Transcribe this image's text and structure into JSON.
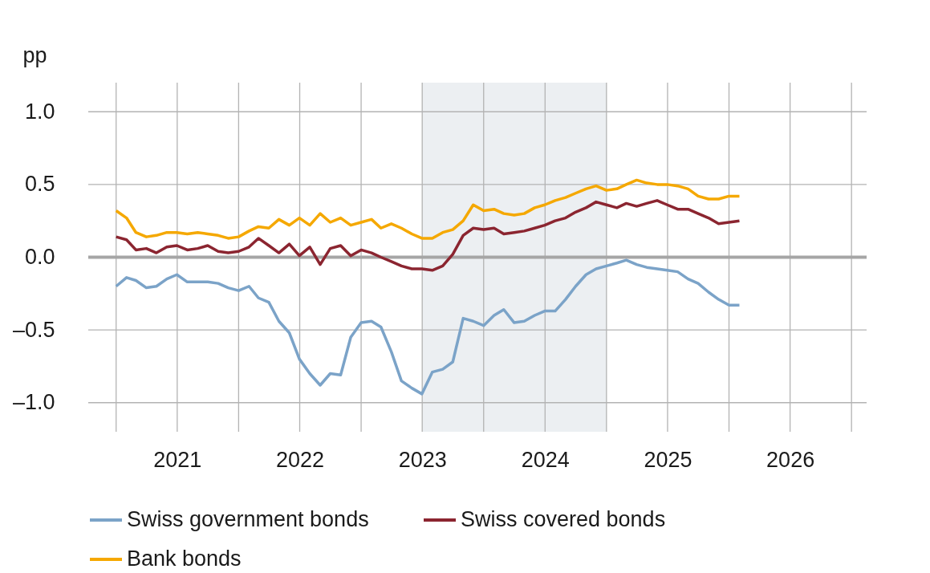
{
  "chart_data": {
    "type": "line",
    "ylabel": "pp",
    "legend": "bottom",
    "grid": true,
    "line_style": "solid",
    "marker": "none",
    "x": [
      "2021-01",
      "2021-02",
      "2021-03",
      "2021-04",
      "2021-05",
      "2021-06",
      "2021-07",
      "2021-08",
      "2021-09",
      "2021-10",
      "2021-11",
      "2021-12",
      "2022-01",
      "2022-02",
      "2022-03",
      "2022-04",
      "2022-05",
      "2022-06",
      "2022-07",
      "2022-08",
      "2022-09",
      "2022-10",
      "2022-11",
      "2022-12",
      "2023-01",
      "2023-02",
      "2023-03",
      "2023-04",
      "2023-05",
      "2023-06",
      "2023-07",
      "2023-08",
      "2023-09",
      "2023-10",
      "2023-11",
      "2023-12",
      "2024-01",
      "2024-02",
      "2024-03",
      "2024-04",
      "2024-05",
      "2024-06",
      "2024-07",
      "2024-08",
      "2024-09",
      "2024-10",
      "2024-11",
      "2024-12",
      "2025-01",
      "2025-02",
      "2025-03",
      "2025-04",
      "2025-05",
      "2025-06",
      "2025-07",
      "2025-08",
      "2025-09",
      "2025-10",
      "2025-11",
      "2025-12",
      "2026-01",
      "2026-02"
    ],
    "series": [
      {
        "name": "Swiss government bonds",
        "color": "#7ba3c8",
        "values": [
          -0.2,
          -0.14,
          -0.16,
          -0.21,
          -0.2,
          -0.15,
          -0.12,
          -0.17,
          -0.17,
          -0.17,
          -0.18,
          -0.21,
          -0.23,
          -0.2,
          -0.28,
          -0.31,
          -0.44,
          -0.52,
          -0.7,
          -0.8,
          -0.88,
          -0.8,
          -0.81,
          -0.55,
          -0.45,
          -0.44,
          -0.48,
          -0.65,
          -0.85,
          -0.9,
          -0.94,
          -0.79,
          -0.77,
          -0.72,
          -0.42,
          -0.44,
          -0.47,
          -0.4,
          -0.36,
          -0.45,
          -0.44,
          -0.4,
          -0.37,
          -0.37,
          -0.29,
          -0.2,
          -0.12,
          -0.08,
          -0.06,
          -0.04,
          -0.02,
          -0.05,
          -0.07,
          -0.08,
          -0.09,
          -0.1,
          -0.15,
          -0.18,
          -0.24,
          -0.29,
          -0.33,
          -0.33
        ]
      },
      {
        "name": "Swiss covered bonds",
        "color": "#8b2530",
        "values": [
          0.14,
          0.12,
          0.05,
          0.06,
          0.03,
          0.07,
          0.08,
          0.05,
          0.06,
          0.08,
          0.04,
          0.03,
          0.04,
          0.07,
          0.13,
          0.08,
          0.03,
          0.09,
          0.01,
          0.07,
          -0.05,
          0.06,
          0.08,
          0.01,
          0.05,
          0.03,
          0.0,
          -0.03,
          -0.06,
          -0.08,
          -0.08,
          -0.09,
          -0.06,
          0.02,
          0.15,
          0.2,
          0.19,
          0.2,
          0.16,
          0.17,
          0.18,
          0.2,
          0.22,
          0.25,
          0.27,
          0.31,
          0.34,
          0.38,
          0.36,
          0.34,
          0.37,
          0.35,
          0.37,
          0.39,
          0.36,
          0.33,
          0.33,
          0.3,
          0.27,
          0.23,
          0.24,
          0.25
        ]
      },
      {
        "name": "Bank bonds",
        "color": "#f5a800",
        "values": [
          0.32,
          0.27,
          0.17,
          0.14,
          0.15,
          0.17,
          0.17,
          0.16,
          0.17,
          0.16,
          0.15,
          0.13,
          0.14,
          0.18,
          0.21,
          0.2,
          0.26,
          0.22,
          0.27,
          0.22,
          0.3,
          0.24,
          0.27,
          0.22,
          0.24,
          0.26,
          0.2,
          0.23,
          0.2,
          0.16,
          0.13,
          0.13,
          0.17,
          0.19,
          0.25,
          0.36,
          0.32,
          0.33,
          0.3,
          0.29,
          0.3,
          0.34,
          0.36,
          0.39,
          0.41,
          0.44,
          0.47,
          0.49,
          0.46,
          0.47,
          0.5,
          0.53,
          0.51,
          0.5,
          0.5,
          0.49,
          0.47,
          0.42,
          0.4,
          0.4,
          0.42,
          0.42
        ]
      }
    ],
    "xlim": [
      "2020-10-10",
      "2027-02-15"
    ],
    "xticks": [
      {
        "value": "2021-01-01",
        "label": null
      },
      {
        "value": "2021-07-02",
        "label": "2021"
      },
      {
        "value": "2022-01-01",
        "label": null
      },
      {
        "value": "2022-07-02",
        "label": "2022"
      },
      {
        "value": "2023-01-01",
        "label": null
      },
      {
        "value": "2023-07-02",
        "label": "2023"
      },
      {
        "value": "2024-01-01",
        "label": null
      },
      {
        "value": "2024-07-02",
        "label": "2024"
      },
      {
        "value": "2025-01-01",
        "label": null
      },
      {
        "value": "2025-07-02",
        "label": "2025"
      },
      {
        "value": "2026-01-01",
        "label": null
      },
      {
        "value": "2026-07-02",
        "label": "2026"
      },
      {
        "value": "2027-01-01",
        "label": null
      }
    ],
    "ylim": [
      -1.2,
      1.2
    ],
    "yticks": [
      {
        "value": -1.0,
        "label": "–1.0"
      },
      {
        "value": -0.5,
        "label": "–0.5"
      },
      {
        "value": 0.0,
        "label": "0.0"
      },
      {
        "value": 0.5,
        "label": "0.5"
      },
      {
        "value": 1.0,
        "label": "1.0"
      }
    ],
    "ref_lines": [
      {
        "axis": "y",
        "value": 0,
        "label": null,
        "color": "#a6a6a6"
      }
    ],
    "bands": [
      {
        "axis": "x",
        "from": "2023-07-01",
        "to": "2025-01-01",
        "label": null,
        "color": "#eceff2"
      }
    ]
  }
}
